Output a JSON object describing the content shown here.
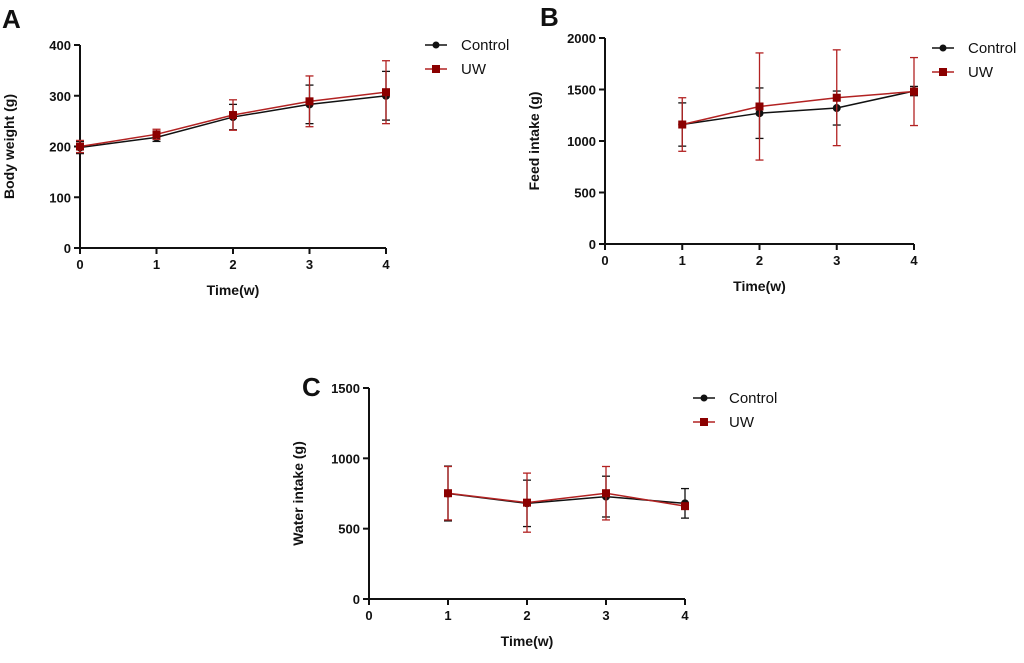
{
  "colors": {
    "control": "#111111",
    "uw": "#b22222",
    "uw_marker": "#8b0000"
  },
  "chart_data": [
    {
      "type": "line",
      "panel": "A",
      "xlabel": "Time(w)",
      "ylabel": "Body weight (g)",
      "xlim": [
        0,
        4
      ],
      "ylim": [
        0,
        400
      ],
      "xticks": [
        "0",
        "1",
        "2",
        "3",
        "4"
      ],
      "yticks": [
        "0",
        "100",
        "200",
        "300",
        "400"
      ],
      "legend": "top-right",
      "series": [
        {
          "name": "Control",
          "marker": "circle",
          "x": [
            0,
            1,
            2,
            3,
            4
          ],
          "y": [
            198,
            218,
            258,
            283,
            300
          ],
          "err": [
            12,
            8,
            25,
            38,
            48
          ]
        },
        {
          "name": "UW",
          "marker": "square",
          "x": [
            0,
            1,
            2,
            3,
            4
          ],
          "y": [
            200,
            224,
            262,
            289,
            307
          ],
          "err": [
            12,
            10,
            30,
            50,
            62
          ]
        }
      ]
    },
    {
      "type": "line",
      "panel": "B",
      "xlabel": "Time(w)",
      "ylabel": "Feed intake (g)",
      "xlim": [
        0,
        4
      ],
      "ylim": [
        0,
        2000
      ],
      "xticks": [
        "0",
        "1",
        "2",
        "3",
        "4"
      ],
      "yticks": [
        "0",
        "500",
        "1000",
        "1500",
        "2000"
      ],
      "legend": "top-right",
      "series": [
        {
          "name": "Control",
          "marker": "circle",
          "x": [
            1,
            2,
            3,
            4
          ],
          "y": [
            1160,
            1270,
            1320,
            1485
          ],
          "err": [
            210,
            245,
            165,
            45
          ]
        },
        {
          "name": "UW",
          "marker": "square",
          "x": [
            1,
            2,
            3,
            4
          ],
          "y": [
            1160,
            1335,
            1420,
            1480
          ],
          "err": [
            260,
            520,
            465,
            330
          ]
        }
      ]
    },
    {
      "type": "line",
      "panel": "C",
      "xlabel": "Time(w)",
      "ylabel": "Water intake (g)",
      "xlim": [
        0,
        4
      ],
      "ylim": [
        0,
        1500
      ],
      "xticks": [
        "0",
        "1",
        "2",
        "3",
        "4"
      ],
      "yticks": [
        "0",
        "500",
        "1000",
        "1500"
      ],
      "legend": "top-right",
      "series": [
        {
          "name": "Control",
          "marker": "circle",
          "x": [
            1,
            2,
            3,
            4
          ],
          "y": [
            750,
            680,
            728,
            680
          ],
          "err": [
            195,
            165,
            145,
            105
          ]
        },
        {
          "name": "UW",
          "marker": "square",
          "x": [
            1,
            2,
            3,
            4
          ],
          "y": [
            752,
            685,
            752,
            660
          ],
          "err": [
            190,
            210,
            190,
            20
          ]
        }
      ]
    }
  ]
}
